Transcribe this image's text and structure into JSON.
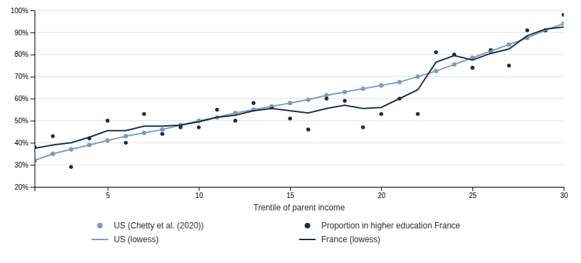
{
  "chart_data": {
    "type": "scatter",
    "x_label": "Trentile of parent income",
    "x": [
      1,
      2,
      3,
      4,
      5,
      6,
      7,
      8,
      9,
      10,
      11,
      12,
      13,
      14,
      15,
      16,
      17,
      18,
      19,
      20,
      21,
      22,
      23,
      24,
      25,
      26,
      27,
      28,
      29,
      30
    ],
    "xlim": [
      1,
      30
    ],
    "xticks": [
      5,
      10,
      15,
      20,
      25,
      30
    ],
    "ylim": [
      0.2,
      1.0
    ],
    "yticks": [
      {
        "value": 0.2,
        "label": "20%"
      },
      {
        "value": 0.3,
        "label": "30%"
      },
      {
        "value": 0.4,
        "label": "40%"
      },
      {
        "value": 0.5,
        "label": "50%"
      },
      {
        "value": 0.6,
        "label": "60%"
      },
      {
        "value": 0.7,
        "label": "70%"
      },
      {
        "value": 0.8,
        "label": "80%"
      },
      {
        "value": 0.9,
        "label": "90%"
      },
      {
        "value": 1.0,
        "label": "100%"
      }
    ],
    "grid": "y",
    "legend": "bottom",
    "series": [
      {
        "name": "US (Chetty et al. (2020))",
        "type": "scatter",
        "marker": "circle",
        "color": "#7a9cbf",
        "values": [
          0.32,
          0.35,
          0.37,
          0.39,
          0.41,
          0.43,
          0.445,
          0.46,
          0.48,
          0.5,
          0.515,
          0.535,
          0.55,
          0.565,
          0.58,
          0.595,
          0.615,
          0.63,
          0.645,
          0.66,
          0.675,
          0.7,
          0.725,
          0.755,
          0.785,
          0.815,
          0.845,
          0.875,
          0.91,
          0.94
        ]
      },
      {
        "name": "Proportion in higher education France",
        "type": "scatter",
        "marker": "circle",
        "color": "#1c2b4a",
        "values": [
          0.38,
          0.43,
          0.29,
          0.42,
          0.5,
          0.4,
          0.53,
          0.44,
          0.47,
          0.47,
          0.55,
          0.5,
          0.58,
          0.56,
          0.51,
          0.46,
          0.6,
          0.59,
          0.47,
          0.53,
          0.6,
          0.53,
          0.81,
          0.8,
          0.74,
          0.82,
          0.75,
          0.91,
          0.91,
          0.98
        ]
      },
      {
        "name": "US (lowess)",
        "type": "line",
        "line_style": "solid",
        "color": "#7a9cbf",
        "values": [
          0.32,
          0.35,
          0.37,
          0.39,
          0.41,
          0.43,
          0.445,
          0.46,
          0.48,
          0.5,
          0.515,
          0.535,
          0.55,
          0.565,
          0.58,
          0.595,
          0.615,
          0.63,
          0.645,
          0.66,
          0.675,
          0.7,
          0.725,
          0.755,
          0.785,
          0.815,
          0.845,
          0.875,
          0.91,
          0.94
        ]
      },
      {
        "name": "France (lowess)",
        "type": "line",
        "line_style": "solid",
        "color": "#1c2b4a",
        "values": [
          0.375,
          0.39,
          0.4,
          0.425,
          0.455,
          0.455,
          0.475,
          0.475,
          0.48,
          0.495,
          0.515,
          0.525,
          0.545,
          0.555,
          0.545,
          0.535,
          0.555,
          0.57,
          0.555,
          0.56,
          0.6,
          0.64,
          0.765,
          0.795,
          0.775,
          0.805,
          0.825,
          0.885,
          0.915,
          0.925
        ]
      }
    ]
  }
}
